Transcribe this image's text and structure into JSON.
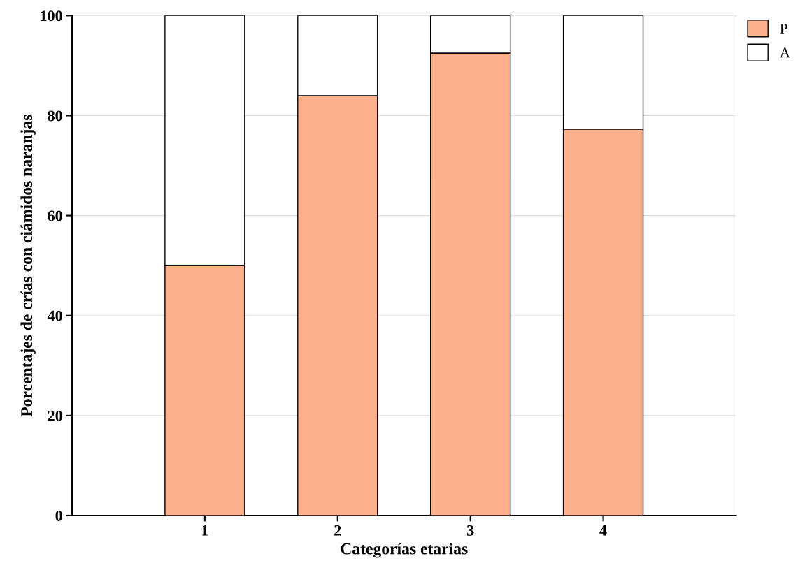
{
  "chart_data": {
    "type": "bar",
    "stacked": true,
    "xlabel": "Categorías etarias",
    "ylabel": "Porcentajes de crías con ciámidos naranjas",
    "categories": [
      "1",
      "2",
      "3",
      "4"
    ],
    "series": [
      {
        "name": "P",
        "color": "#fdb08a",
        "values": [
          50,
          84,
          92.5,
          77.3
        ]
      },
      {
        "name": "A",
        "color": "#ffffff",
        "values": [
          50,
          16,
          7.5,
          22.7
        ]
      }
    ],
    "ylim": [
      0,
      100
    ],
    "yticks": [
      0,
      20,
      40,
      60,
      80,
      100
    ],
    "grid": "y",
    "legend": "top right"
  }
}
